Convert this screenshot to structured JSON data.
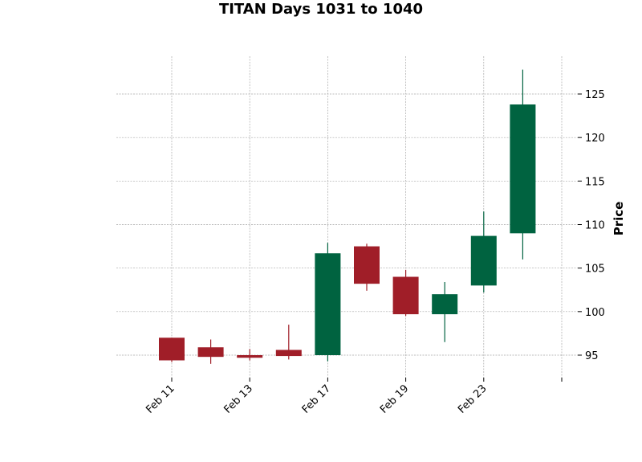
{
  "chart_data": {
    "type": "candlestick",
    "title": "TITAN Days 1031 to 1040",
    "ylabel": "Price",
    "xlabel": "",
    "ylim": [
      92.5,
      129.5
    ],
    "y_ticks": [
      95,
      100,
      105,
      110,
      115,
      120,
      125
    ],
    "x_tick_labels": [
      "Feb 11",
      "Feb 13",
      "Feb 17",
      "Feb 19",
      "Feb 23",
      ""
    ],
    "x_tick_positions": [
      0,
      2,
      4,
      6,
      8,
      10
    ],
    "grid": true,
    "colors": {
      "up": "#006340",
      "down": "#a01e28"
    },
    "candles": [
      {
        "open": 97.0,
        "high": 97.0,
        "low": 94.2,
        "close": 94.4
      },
      {
        "open": 95.9,
        "high": 96.8,
        "low": 94.0,
        "close": 94.8
      },
      {
        "open": 95.0,
        "high": 95.7,
        "low": 94.4,
        "close": 94.7
      },
      {
        "open": 95.6,
        "high": 98.5,
        "low": 94.5,
        "close": 94.9
      },
      {
        "open": 95.0,
        "high": 107.9,
        "low": 94.3,
        "close": 106.7
      },
      {
        "open": 107.5,
        "high": 107.8,
        "low": 102.4,
        "close": 103.2
      },
      {
        "open": 104.0,
        "high": 104.8,
        "low": 99.5,
        "close": 99.7
      },
      {
        "open": 99.7,
        "high": 103.4,
        "low": 96.5,
        "close": 102.0
      },
      {
        "open": 103.0,
        "high": 111.5,
        "low": 102.2,
        "close": 108.7
      },
      {
        "open": 109.0,
        "high": 127.8,
        "low": 106.0,
        "close": 123.8
      }
    ]
  }
}
